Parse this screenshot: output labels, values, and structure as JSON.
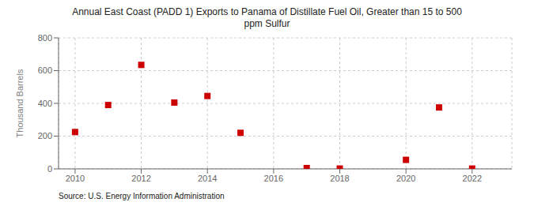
{
  "chart_data": {
    "type": "scatter",
    "title": "Annual East Coast (PADD 1) Exports to Panama of Distillate Fuel Oil, Greater than 15 to 500\nppm Sulfur",
    "y_label": "Thousand Barrels",
    "annotations": [
      "Source: U.S. Energy Information Administration"
    ],
    "x": [
      2010,
      2011,
      2012,
      2013,
      2014,
      2015,
      2017,
      2018,
      2020,
      2021,
      2022
    ],
    "values": [
      225,
      390,
      635,
      405,
      445,
      220,
      5,
      2,
      55,
      375,
      2
    ],
    "xlim": [
      2009.5,
      2023.2
    ],
    "ylim": [
      0,
      800
    ],
    "xticks": [
      2010,
      2012,
      2014,
      2016,
      2018,
      2020,
      2022
    ],
    "yticks": [
      0,
      200,
      400,
      600,
      800
    ],
    "color": "#cc0000",
    "marker": "square",
    "grid": true
  }
}
